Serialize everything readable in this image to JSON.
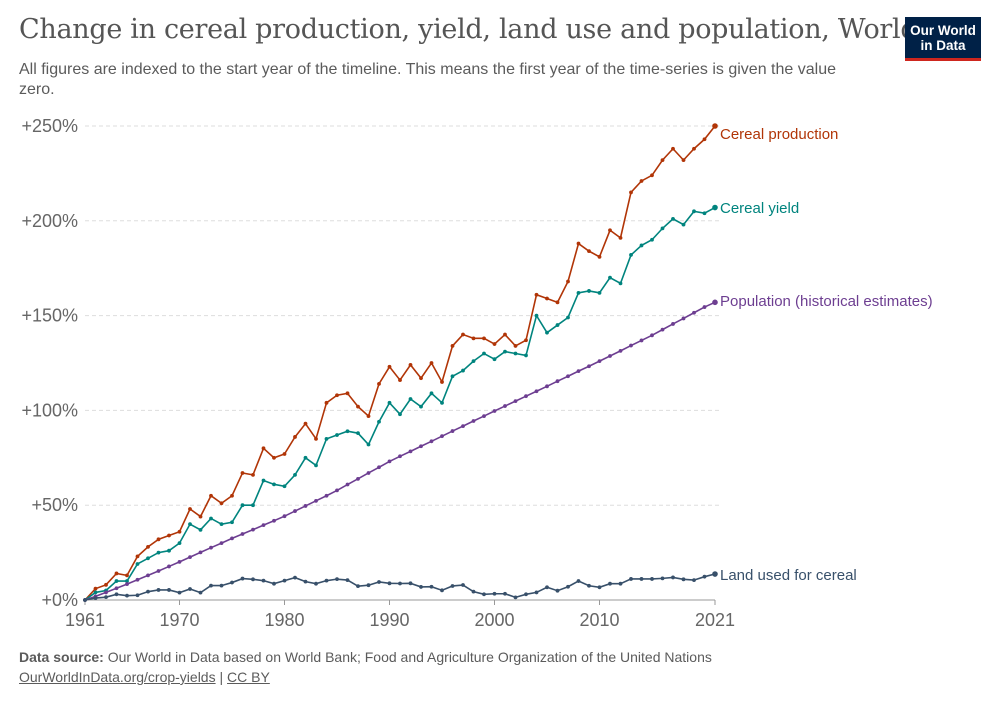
{
  "header": {
    "title": "Change in cereal production, yield, land use and population, World",
    "subtitle": "All figures are indexed to the start year of the timeline. This means the first year of the time-series is given the value zero.",
    "logo_line1": "Our World",
    "logo_line2": "in Data"
  },
  "footer": {
    "source_label": "Data source:",
    "source_text": "Our World in Data based on World Bank; Food and Agriculture Organization of the United Nations",
    "link": "OurWorldInData.org/crop-yields",
    "separator": "|",
    "license": "CC BY"
  },
  "chart_data": {
    "type": "line",
    "title": "Change in cereal production, yield, land use and population, World",
    "xlabel": "",
    "ylabel": "",
    "xlim": [
      1961,
      2021
    ],
    "ylim": [
      0,
      250
    ],
    "grid": true,
    "legend": "line-end labels, right",
    "x_ticks": [
      "1961",
      "1970",
      "1980",
      "1990",
      "2000",
      "2010",
      "2021"
    ],
    "y_ticks": [
      "+0%",
      "+50%",
      "+100%",
      "+150%",
      "+200%",
      "+250%"
    ],
    "y_tick_values": [
      0,
      50,
      100,
      150,
      200,
      250
    ],
    "x": [
      1961,
      1962,
      1963,
      1964,
      1965,
      1966,
      1967,
      1968,
      1969,
      1970,
      1971,
      1972,
      1973,
      1974,
      1975,
      1976,
      1977,
      1978,
      1979,
      1980,
      1981,
      1982,
      1983,
      1984,
      1985,
      1986,
      1987,
      1988,
      1989,
      1990,
      1991,
      1992,
      1993,
      1994,
      1995,
      1996,
      1997,
      1998,
      1999,
      2000,
      2001,
      2002,
      2003,
      2004,
      2005,
      2006,
      2007,
      2008,
      2009,
      2010,
      2011,
      2012,
      2013,
      2014,
      2015,
      2016,
      2017,
      2018,
      2019,
      2020,
      2021
    ],
    "series": [
      {
        "name": "Cereal production",
        "color": "#b13507",
        "values": [
          0,
          6,
          8,
          14,
          13,
          23,
          28,
          32,
          34,
          36,
          48,
          44,
          55,
          51,
          55,
          67,
          66,
          80,
          75,
          77,
          86,
          93,
          85,
          104,
          108,
          109,
          102,
          97,
          114,
          123,
          116,
          124,
          117,
          125,
          115,
          134,
          140,
          138,
          138,
          135,
          140,
          134,
          137,
          161,
          159,
          157,
          168,
          188,
          184,
          181,
          195,
          191,
          215,
          221,
          224,
          232,
          238,
          232,
          238,
          243,
          250
        ]
      },
      {
        "name": "Cereal yield",
        "color": "#00847e",
        "values": [
          0,
          4,
          5,
          10,
          10,
          19,
          22,
          25,
          26,
          30,
          40,
          37,
          43,
          40,
          41,
          50,
          50,
          63,
          61,
          60,
          66,
          75,
          71,
          85,
          87,
          89,
          88,
          82,
          94,
          104,
          98,
          106,
          102,
          109,
          104,
          118,
          121,
          126,
          130,
          127,
          131,
          130,
          129,
          150,
          141,
          145,
          149,
          162,
          163,
          162,
          170,
          167,
          182,
          187,
          190,
          196,
          201,
          198,
          205,
          204,
          207
        ]
      },
      {
        "name": "Population (historical estimates)",
        "color": "#6d3e91",
        "values": [
          0,
          1.9,
          4,
          6.2,
          8.4,
          10.7,
          13,
          15.3,
          17.7,
          20.1,
          22.6,
          25.1,
          27.6,
          30,
          32.5,
          34.8,
          37.1,
          39.5,
          41.8,
          44.2,
          46.9,
          49.6,
          52.3,
          55,
          57.8,
          60.9,
          63.9,
          67,
          70,
          73.1,
          75.8,
          78.4,
          81.1,
          83.7,
          86.4,
          89.1,
          91.7,
          94.4,
          97,
          99.7,
          102.3,
          104.9,
          107.5,
          110.1,
          112.7,
          115.4,
          118,
          120.7,
          123.3,
          126,
          128.7,
          131.4,
          134.2,
          136.9,
          139.6,
          142.6,
          145.6,
          148.5,
          151.5,
          154.5,
          157
        ]
      },
      {
        "name": "Land used for cereal",
        "color": "#38506a",
        "values": [
          0,
          1,
          1.5,
          3,
          2.3,
          2.5,
          4.4,
          5.3,
          5.3,
          3.9,
          5.8,
          3.9,
          7.6,
          7.6,
          9.2,
          11.3,
          10.9,
          10.2,
          8.6,
          10.2,
          11.8,
          9.7,
          8.6,
          10.2,
          11,
          10.5,
          7.3,
          7.8,
          9.5,
          8.8,
          8.7,
          8.8,
          6.9,
          7,
          5.1,
          7.4,
          7.9,
          4.4,
          3,
          3.3,
          3.3,
          1.4,
          3,
          4,
          6.7,
          4.9,
          7,
          10,
          7.5,
          6.7,
          8.6,
          8.6,
          11.1,
          11.1,
          11.1,
          11.4,
          11.9,
          10.9,
          10.5,
          12.3,
          13.7
        ]
      }
    ]
  }
}
